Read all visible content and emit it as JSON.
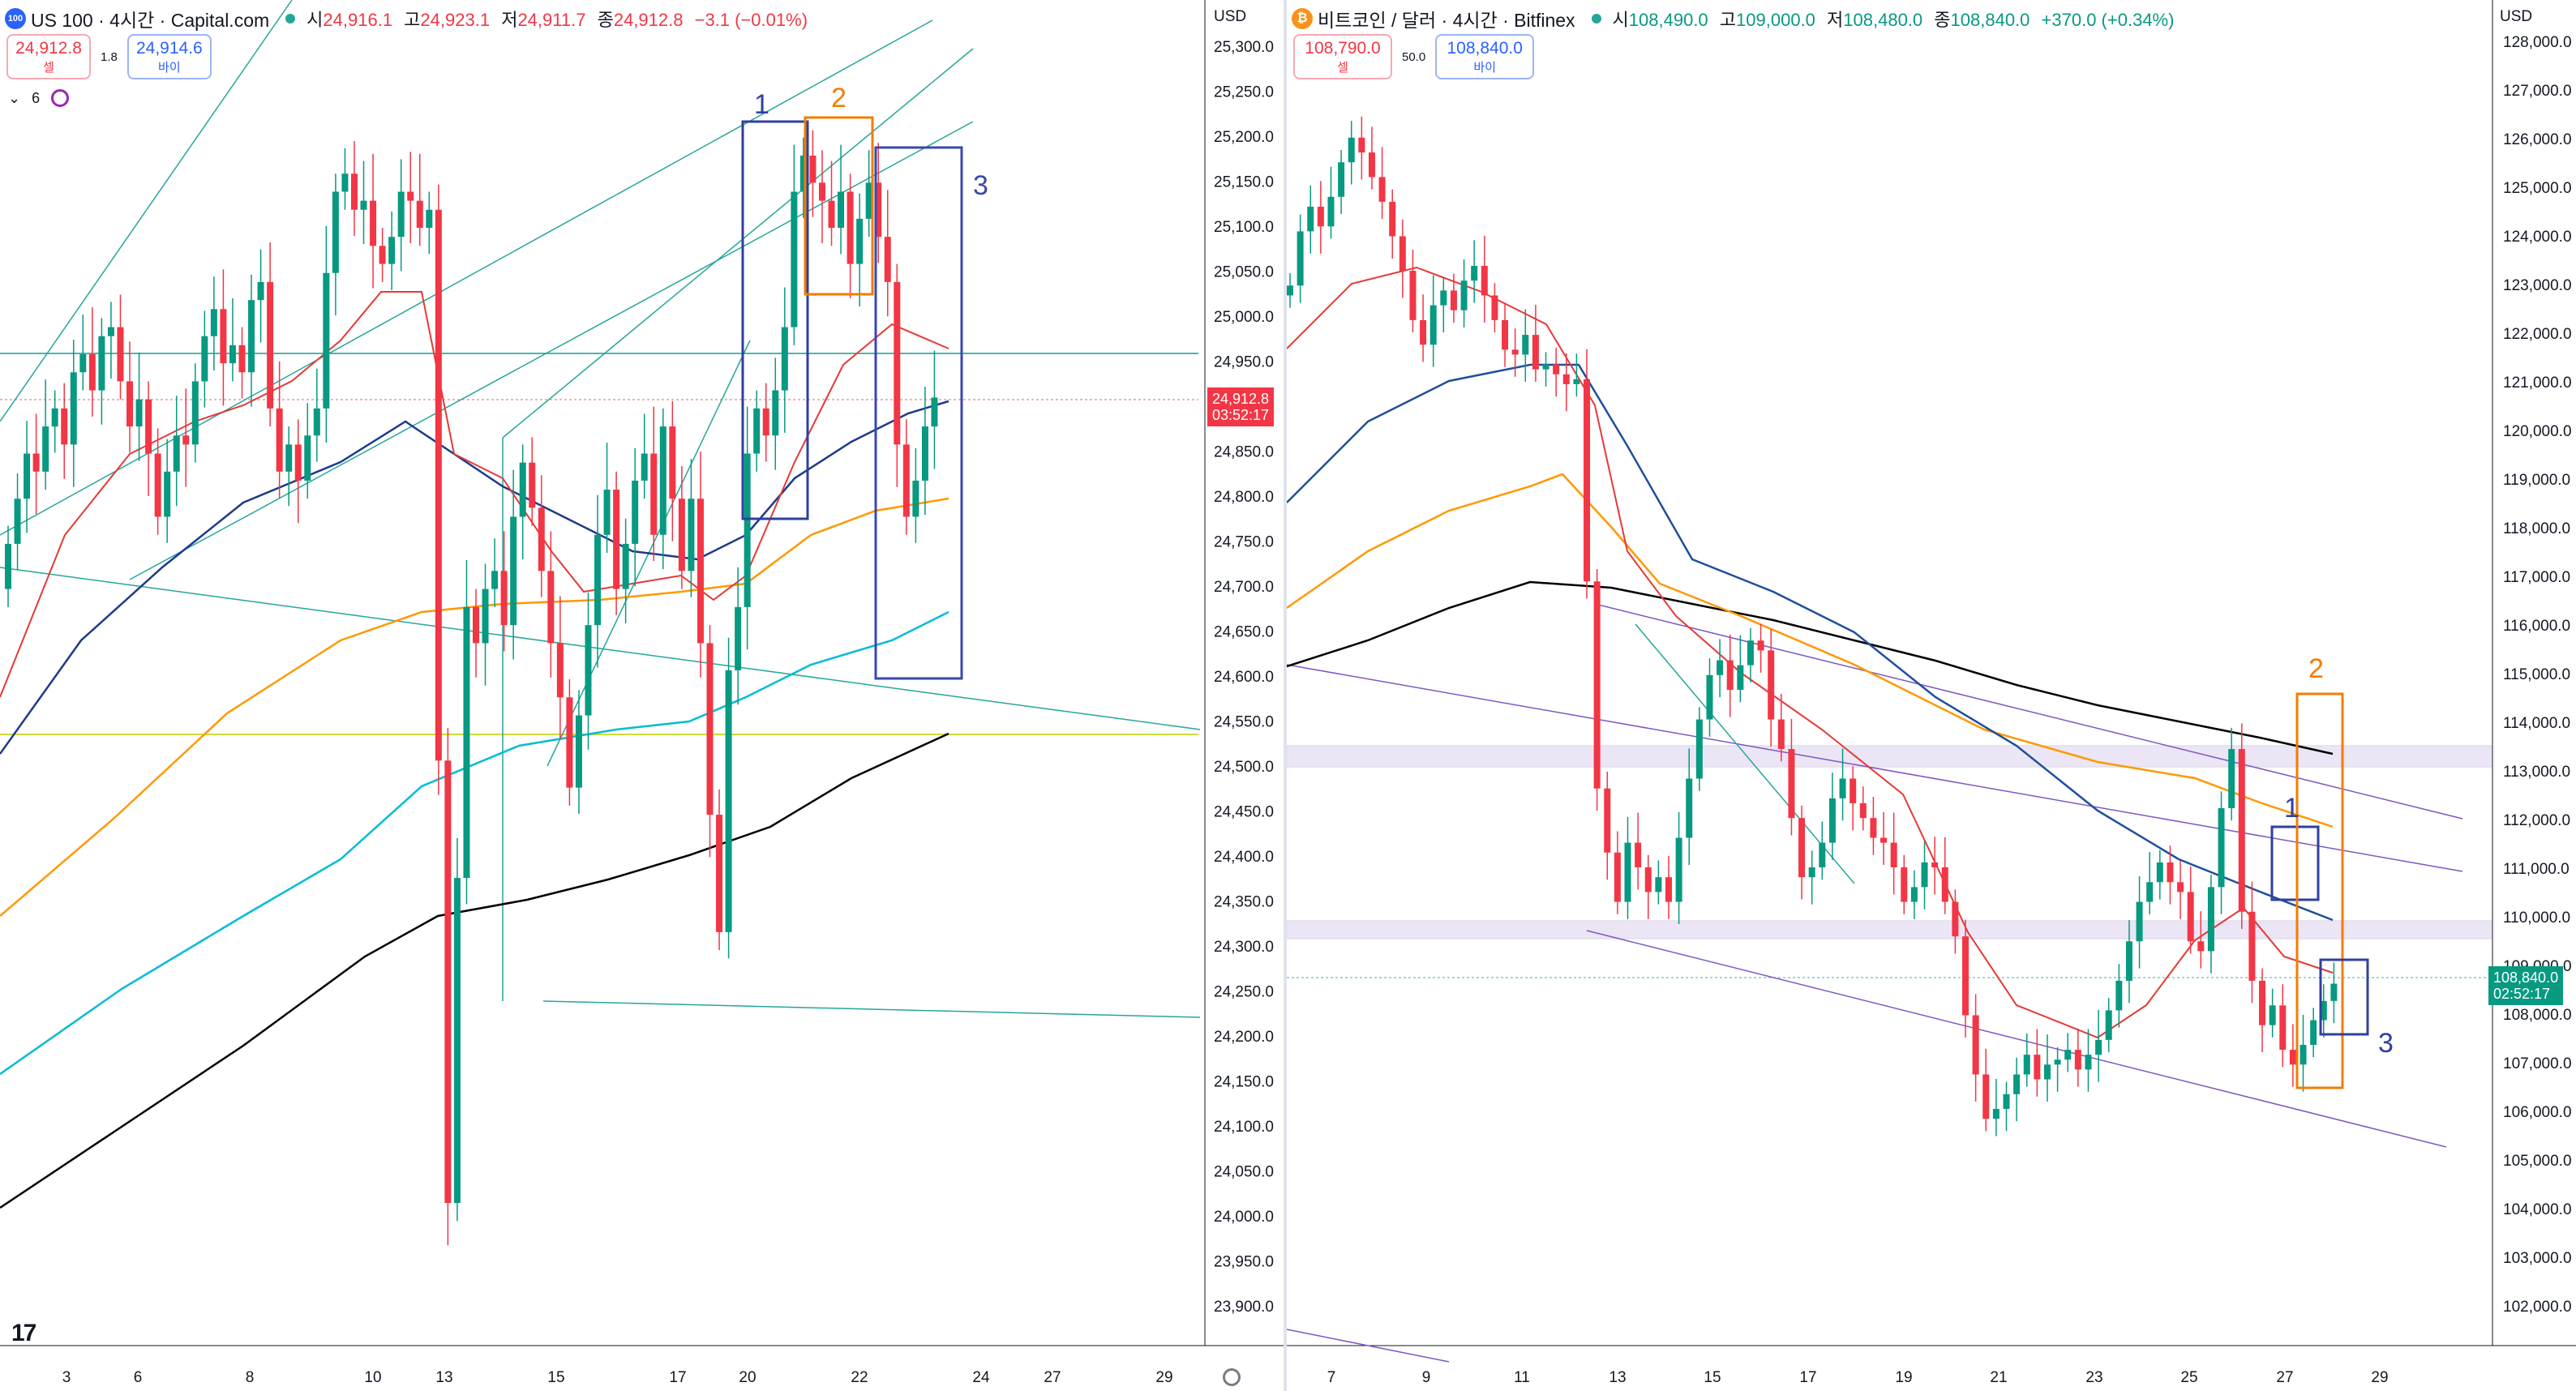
{
  "left": {
    "symbol_badge": "100",
    "title": "US 100 · 4시간 · Capital.com",
    "ohlc": [
      {
        "k": "시",
        "v": "24,916.1"
      },
      {
        "k": "고",
        "v": "24,923.1"
      },
      {
        "k": "저",
        "v": "24,911.7"
      },
      {
        "k": "종",
        "v": "24,912.8"
      }
    ],
    "change": "−3.1 (−0.01%)",
    "sell_price": "24,912.8",
    "sell_label": "셀",
    "spread": "1.8",
    "buy_price": "24,914.6",
    "buy_label": "바이",
    "indicator_count": "6",
    "currency": "USD",
    "last_price": "24,912.8",
    "countdown": "03:52:17",
    "price_ticks": [
      "25,300.0",
      "25,250.0",
      "25,200.0",
      "25,150.0",
      "25,100.0",
      "25,050.0",
      "25,000.0",
      "24,950.0",
      "24,900.0",
      "24,850.0",
      "24,800.0",
      "24,750.0",
      "24,700.0",
      "24,650.0",
      "24,600.0",
      "24,550.0",
      "24,500.0",
      "24,450.0",
      "24,400.0",
      "24,350.0",
      "24,300.0",
      "24,250.0",
      "24,200.0",
      "24,150.0",
      "24,100.0",
      "24,050.0",
      "24,000.0",
      "23,950.0",
      "23,900.0"
    ],
    "date_ticks": [
      "3",
      "6",
      "8",
      "10",
      "13",
      "15",
      "17",
      "20",
      "22",
      "24",
      "27",
      "29"
    ],
    "box_labels": [
      "1",
      "2",
      "3"
    ],
    "colors": {
      "up": "#089981",
      "down": "#f23645",
      "box1": "#303f9f",
      "box2": "#f57c00",
      "box3": "#3949ab"
    }
  },
  "right": {
    "symbol_badge": "₿",
    "title": "비트코인 / 달러 · 4시간 · Bitfinex",
    "ohlc": [
      {
        "k": "시",
        "v": "108,490.0"
      },
      {
        "k": "고",
        "v": "109,000.0"
      },
      {
        "k": "저",
        "v": "108,480.0"
      },
      {
        "k": "종",
        "v": "108,840.0"
      }
    ],
    "change": "+370.0 (+0.34%)",
    "sell_price": "108,790.0",
    "sell_label": "셀",
    "spread": "50.0",
    "buy_price": "108,840.0",
    "buy_label": "바이",
    "currency": "USD",
    "last_price": "108,840.0",
    "countdown": "02:52:17",
    "price_ticks": [
      "128,000.0",
      "127,000.0",
      "126,000.0",
      "125,000.0",
      "124,000.0",
      "123,000.0",
      "122,000.0",
      "121,000.0",
      "120,000.0",
      "119,000.0",
      "118,000.0",
      "117,000.0",
      "116,000.0",
      "115,000.0",
      "114,000.0",
      "113,000.0",
      "112,000.0",
      "111,000.0",
      "110,000.0",
      "109,000.0",
      "108,000.0",
      "107,000.0",
      "106,000.0",
      "105,000.0",
      "104,000.0",
      "103,000.0",
      "102,000.0"
    ],
    "date_ticks": [
      "7",
      "9",
      "11",
      "13",
      "15",
      "17",
      "19",
      "21",
      "23",
      "25",
      "27",
      "29"
    ],
    "box_labels": [
      "1",
      "2",
      "3"
    ]
  }
}
